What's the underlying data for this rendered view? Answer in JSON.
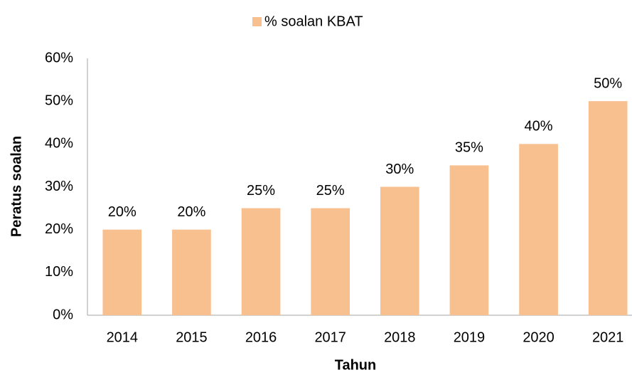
{
  "chart_data": {
    "type": "bar",
    "legend": "% soalan KBAT",
    "x_label": "Tahun",
    "y_label": "Peratus soalan",
    "categories": [
      "2014",
      "2015",
      "2016",
      "2017",
      "2018",
      "2019",
      "2020",
      "2021"
    ],
    "values": [
      20,
      20,
      25,
      25,
      30,
      35,
      40,
      50
    ],
    "value_labels": [
      "20%",
      "20%",
      "25%",
      "25%",
      "30%",
      "35%",
      "40%",
      "50%"
    ],
    "color": "#f8bf8f",
    "ylim": [
      0,
      60
    ],
    "yticks": [
      {
        "value": 0,
        "label": "0%"
      },
      {
        "value": 10,
        "label": "10%"
      },
      {
        "value": 20,
        "label": "20%"
      },
      {
        "value": 30,
        "label": "30%"
      },
      {
        "value": 40,
        "label": "40%"
      },
      {
        "value": 50,
        "label": "50%"
      },
      {
        "value": 60,
        "label": "60%"
      }
    ],
    "grid": false
  }
}
